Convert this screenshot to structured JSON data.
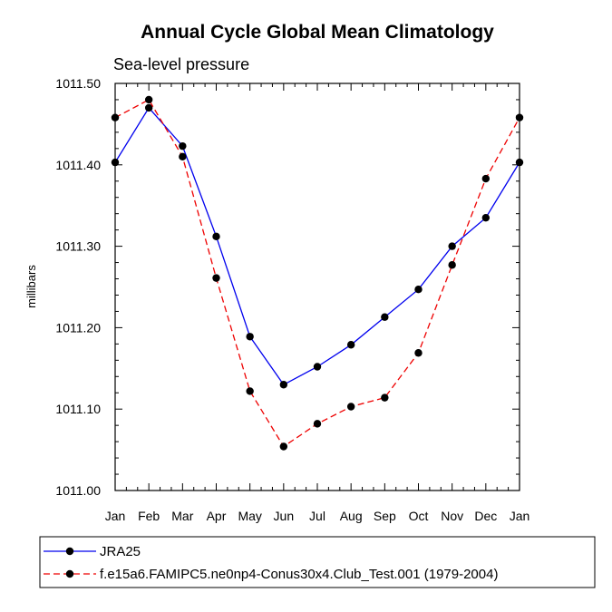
{
  "chart_data": {
    "type": "line",
    "title": "Annual Cycle Global Mean Climatology",
    "subtitle": "Sea-level pressure",
    "xlabel": "",
    "ylabel": "millibars",
    "categories": [
      "Jan",
      "Feb",
      "Mar",
      "Apr",
      "May",
      "Jun",
      "Jul",
      "Aug",
      "Sep",
      "Oct",
      "Nov",
      "Dec",
      "Jan"
    ],
    "ylim": [
      1011.0,
      1011.5
    ],
    "yticks": [
      1011.0,
      1011.1,
      1011.2,
      1011.3,
      1011.4,
      1011.5
    ],
    "ytick_labels": [
      "1011.00",
      "1011.10",
      "1011.20",
      "1011.30",
      "1011.40",
      "1011.50"
    ],
    "grid": false,
    "legend_position": "bottom",
    "series": [
      {
        "name": "JRA25",
        "color": "#0000ee",
        "dash": "solid",
        "values": [
          1011.403,
          1011.47,
          1011.423,
          1011.312,
          1011.189,
          1011.13,
          1011.152,
          1011.179,
          1011.213,
          1011.247,
          1011.3,
          1011.335,
          1011.403
        ]
      },
      {
        "name": "f.e15a6.FAMIPC5.ne0np4-Conus30x4.Club_Test.001 (1979-2004)",
        "color": "#ee0000",
        "dash": "dashed",
        "values": [
          1011.458,
          1011.48,
          1011.41,
          1011.261,
          1011.122,
          1011.054,
          1011.082,
          1011.103,
          1011.114,
          1011.169,
          1011.277,
          1011.383,
          1011.458
        ]
      }
    ]
  }
}
